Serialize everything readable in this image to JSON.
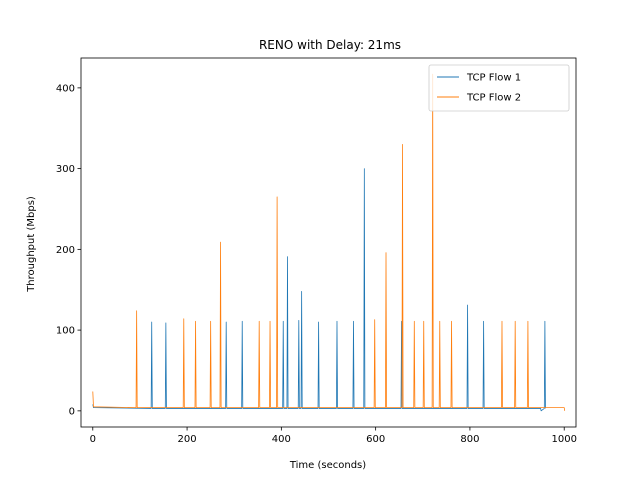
{
  "chart_data": {
    "type": "line",
    "title": "RENO with Delay: 21ms",
    "xlabel": "Time (seconds)",
    "ylabel": "Throughput (Mbps)",
    "xlim": [
      -25,
      1025
    ],
    "ylim": [
      -20,
      437
    ],
    "xticks": [
      0,
      200,
      400,
      600,
      800,
      1000
    ],
    "yticks": [
      0,
      100,
      200,
      300,
      400
    ],
    "legend": "top-right",
    "grid": false,
    "series": [
      {
        "name": "TCP Flow 1",
        "color": "#1f77b4",
        "baseline": 3,
        "start_point": [
          0,
          8
        ],
        "end_time": 950,
        "spikes": [
          [
            125,
            110
          ],
          [
            155,
            109
          ],
          [
            283,
            110
          ],
          [
            317,
            111
          ],
          [
            404,
            111
          ],
          [
            413,
            191
          ],
          [
            437,
            112
          ],
          [
            443,
            148
          ],
          [
            479,
            110
          ],
          [
            518,
            111
          ],
          [
            553,
            111
          ],
          [
            576,
            300
          ],
          [
            655,
            111
          ],
          [
            795,
            131
          ],
          [
            829,
            111
          ],
          [
            959,
            111
          ]
        ]
      },
      {
        "name": "TCP Flow 2",
        "color": "#ff7f0e",
        "baseline": 4,
        "start_point": [
          0,
          24
        ],
        "end_time": 1000,
        "spikes": [
          [
            93,
            124
          ],
          [
            193,
            114
          ],
          [
            218,
            111
          ],
          [
            250,
            111
          ],
          [
            271,
            209
          ],
          [
            353,
            111
          ],
          [
            376,
            111
          ],
          [
            391,
            265
          ],
          [
            598,
            113
          ],
          [
            622,
            196
          ],
          [
            657,
            330
          ],
          [
            682,
            111
          ],
          [
            702,
            111
          ],
          [
            721,
            417
          ],
          [
            736,
            111
          ],
          [
            761,
            111
          ],
          [
            868,
            111
          ],
          [
            896,
            111
          ],
          [
            923,
            111
          ]
        ]
      }
    ]
  }
}
